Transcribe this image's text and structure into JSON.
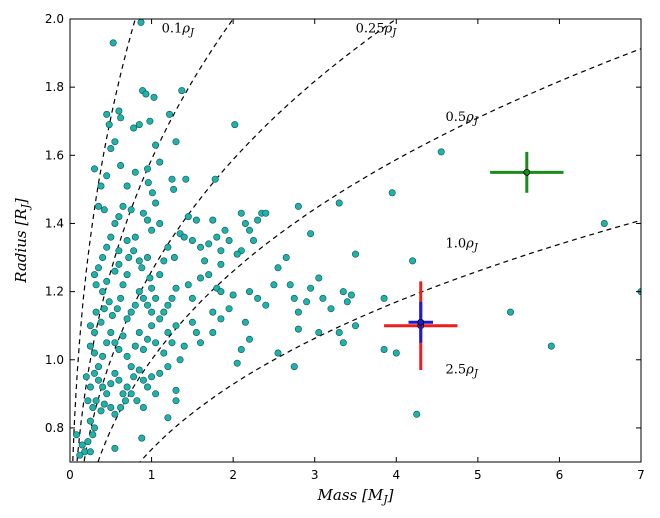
{
  "chart_data": {
    "type": "scatter",
    "xlabel": "Mass [M_J]",
    "ylabel": "Radius [R_J]",
    "xlim": [
      0,
      7
    ],
    "ylim": [
      0.7,
      2.0
    ],
    "xticks": [
      "0",
      "1",
      "2",
      "3",
      "4",
      "5",
      "6",
      "7"
    ],
    "yticks": [
      "0.8",
      "1.0",
      "1.2",
      "1.4",
      "1.6",
      "1.8",
      "2.0"
    ],
    "grid": false,
    "colors": {
      "points": "#20b2aa",
      "point_edge": "#0a5550",
      "curves": "#000000",
      "red_planet": "#ee1c1c",
      "blue_planet": "#1b1bcf",
      "green_planet": "#1a8c1a"
    },
    "density_curves": [
      {
        "label": "0.1ρ_J",
        "density": 0.1
      },
      {
        "label": "0.25ρ_J",
        "density": 0.25
      },
      {
        "label": "0.5ρ_J",
        "density": 0.5
      },
      {
        "label": "1.0ρ_J",
        "density": 1.0
      },
      {
        "label": "2.5ρ_J",
        "density": 2.5
      }
    ],
    "highlighted_planets": [
      {
        "color": "green",
        "x": 5.6,
        "y": 1.55,
        "xerr": 0.45,
        "yerr": 0.06
      },
      {
        "color": "red",
        "x": 4.3,
        "y": 1.1,
        "xerr": 0.45,
        "yerr": 0.13
      },
      {
        "color": "blue",
        "x": 4.3,
        "y": 1.11,
        "xerr": 0.15,
        "yerr": 0.06
      }
    ],
    "points": [
      [
        0.53,
        1.93
      ],
      [
        0.87,
        1.99
      ],
      [
        0.45,
        1.72
      ],
      [
        0.48,
        1.69
      ],
      [
        0.62,
        1.71
      ],
      [
        0.6,
        1.73
      ],
      [
        0.78,
        1.68
      ],
      [
        0.85,
        1.69
      ],
      [
        0.89,
        1.79
      ],
      [
        0.93,
        1.78
      ],
      [
        1.03,
        1.77
      ],
      [
        1.37,
        1.79
      ],
      [
        0.98,
        1.7
      ],
      [
        1.22,
        1.72
      ],
      [
        1.05,
        1.63
      ],
      [
        1.3,
        1.64
      ],
      [
        0.55,
        1.64
      ],
      [
        0.62,
        1.57
      ],
      [
        0.5,
        1.62
      ],
      [
        0.3,
        1.56
      ],
      [
        0.38,
        1.51
      ],
      [
        0.45,
        1.54
      ],
      [
        0.7,
        1.51
      ],
      [
        0.8,
        1.55
      ],
      [
        0.95,
        1.56
      ],
      [
        0.96,
        1.52
      ],
      [
        1.01,
        1.49
      ],
      [
        1.1,
        1.58
      ],
      [
        1.25,
        1.53
      ],
      [
        1.27,
        1.5
      ],
      [
        1.42,
        1.53
      ],
      [
        1.78,
        1.53
      ],
      [
        2.02,
        1.69
      ],
      [
        0.35,
        1.45
      ],
      [
        0.42,
        1.44
      ],
      [
        0.55,
        1.4
      ],
      [
        0.6,
        1.42
      ],
      [
        0.65,
        1.45
      ],
      [
        0.75,
        1.44
      ],
      [
        0.9,
        1.43
      ],
      [
        0.95,
        1.41
      ],
      [
        1.05,
        1.46
      ],
      [
        1.0,
        1.38
      ],
      [
        0.8,
        1.36
      ],
      [
        0.7,
        1.35
      ],
      [
        0.6,
        1.32
      ],
      [
        0.5,
        1.36
      ],
      [
        0.45,
        1.33
      ],
      [
        0.4,
        1.3
      ],
      [
        0.35,
        1.27
      ],
      [
        0.3,
        1.25
      ],
      [
        0.32,
        1.22
      ],
      [
        0.4,
        1.2
      ],
      [
        0.45,
        1.23
      ],
      [
        0.55,
        1.26
      ],
      [
        0.6,
        1.28
      ],
      [
        0.65,
        1.22
      ],
      [
        0.7,
        1.25
      ],
      [
        0.72,
        1.3
      ],
      [
        0.78,
        1.32
      ],
      [
        0.85,
        1.29
      ],
      [
        0.88,
        1.27
      ],
      [
        0.95,
        1.3
      ],
      [
        0.98,
        1.24
      ],
      [
        1.0,
        1.21
      ],
      [
        1.05,
        1.18
      ],
      [
        1.1,
        1.25
      ],
      [
        1.15,
        1.29
      ],
      [
        1.2,
        1.33
      ],
      [
        1.28,
        1.3
      ],
      [
        1.35,
        1.37
      ],
      [
        1.4,
        1.36
      ],
      [
        1.5,
        1.35
      ],
      [
        1.6,
        1.33
      ],
      [
        1.7,
        1.34
      ],
      [
        1.75,
        1.41
      ],
      [
        1.8,
        1.36
      ],
      [
        1.9,
        1.38
      ],
      [
        1.95,
        1.35
      ],
      [
        2.1,
        1.43
      ],
      [
        2.15,
        1.4
      ],
      [
        2.2,
        1.38
      ],
      [
        2.25,
        1.35
      ],
      [
        2.3,
        1.41
      ],
      [
        2.35,
        1.43
      ],
      [
        2.4,
        1.43
      ],
      [
        2.1,
        1.32
      ],
      [
        2.05,
        1.31
      ],
      [
        1.85,
        1.32
      ],
      [
        1.65,
        1.29
      ],
      [
        1.6,
        1.24
      ],
      [
        1.7,
        1.25
      ],
      [
        1.8,
        1.21
      ],
      [
        1.85,
        1.2
      ],
      [
        1.5,
        1.18
      ],
      [
        1.45,
        1.22
      ],
      [
        1.3,
        1.21
      ],
      [
        1.25,
        1.18
      ],
      [
        1.2,
        1.16
      ],
      [
        1.15,
        1.14
      ],
      [
        1.1,
        1.12
      ],
      [
        1.0,
        1.14
      ],
      [
        0.95,
        1.16
      ],
      [
        0.9,
        1.18
      ],
      [
        0.85,
        1.2
      ],
      [
        0.8,
        1.16
      ],
      [
        0.75,
        1.14
      ],
      [
        0.7,
        1.12
      ],
      [
        0.62,
        1.18
      ],
      [
        0.58,
        1.15
      ],
      [
        0.52,
        1.13
      ],
      [
        0.48,
        1.17
      ],
      [
        0.42,
        1.15
      ],
      [
        0.38,
        1.11
      ],
      [
        0.32,
        1.14
      ],
      [
        0.3,
        1.08
      ],
      [
        0.25,
        1.1
      ],
      [
        0.25,
        1.04
      ],
      [
        0.3,
        1.02
      ],
      [
        0.35,
        0.98
      ],
      [
        0.4,
        1.01
      ],
      [
        0.45,
        1.05
      ],
      [
        0.5,
        1.08
      ],
      [
        0.55,
        1.05
      ],
      [
        0.6,
        1.03
      ],
      [
        0.65,
        1.07
      ],
      [
        0.7,
        1.01
      ],
      [
        0.75,
        0.98
      ],
      [
        0.8,
        1.04
      ],
      [
        0.85,
        1.08
      ],
      [
        0.9,
        1.03
      ],
      [
        0.95,
        1.06
      ],
      [
        1.0,
        1.1
      ],
      [
        1.05,
        1.05
      ],
      [
        1.15,
        1.02
      ],
      [
        1.2,
        1.08
      ],
      [
        1.25,
        1.05
      ],
      [
        1.3,
        1.1
      ],
      [
        1.4,
        1.04
      ],
      [
        1.5,
        1.11
      ],
      [
        1.55,
        1.08
      ],
      [
        1.6,
        1.05
      ],
      [
        1.35,
        1.0
      ],
      [
        1.2,
        0.98
      ],
      [
        1.1,
        0.96
      ],
      [
        1.0,
        0.95
      ],
      [
        0.95,
        0.92
      ],
      [
        0.9,
        0.94
      ],
      [
        0.85,
        0.97
      ],
      [
        0.78,
        0.95
      ],
      [
        0.7,
        0.92
      ],
      [
        0.65,
        0.9
      ],
      [
        0.6,
        0.94
      ],
      [
        0.55,
        0.96
      ],
      [
        0.5,
        0.93
      ],
      [
        0.45,
        0.9
      ],
      [
        0.4,
        0.92
      ],
      [
        0.35,
        0.94
      ],
      [
        0.3,
        0.96
      ],
      [
        0.25,
        0.92
      ],
      [
        0.2,
        0.95
      ],
      [
        0.22,
        0.88
      ],
      [
        0.28,
        0.86
      ],
      [
        0.32,
        0.88
      ],
      [
        0.38,
        0.85
      ],
      [
        0.42,
        0.87
      ],
      [
        0.5,
        0.86
      ],
      [
        0.55,
        0.84
      ],
      [
        0.62,
        0.86
      ],
      [
        0.68,
        0.88
      ],
      [
        0.75,
        0.9
      ],
      [
        0.82,
        0.88
      ],
      [
        0.9,
        0.86
      ],
      [
        1.05,
        0.9
      ],
      [
        0.25,
        0.82
      ],
      [
        0.28,
        0.78
      ],
      [
        0.3,
        0.8
      ],
      [
        0.22,
        0.76
      ],
      [
        0.18,
        0.73
      ],
      [
        0.15,
        0.75
      ],
      [
        0.25,
        0.73
      ],
      [
        0.08,
        0.78
      ],
      [
        0.12,
        0.72
      ],
      [
        0.55,
        0.74
      ],
      [
        0.88,
        0.77
      ],
      [
        1.3,
        0.88
      ],
      [
        1.75,
        1.08
      ],
      [
        1.85,
        1.12
      ],
      [
        1.95,
        1.15
      ],
      [
        2.15,
        1.11
      ],
      [
        2.2,
        1.06
      ],
      [
        2.1,
        1.03
      ],
      [
        2.05,
        0.99
      ],
      [
        2.2,
        1.2
      ],
      [
        2.3,
        1.18
      ],
      [
        2.4,
        1.16
      ],
      [
        2.5,
        1.22
      ],
      [
        2.55,
        1.27
      ],
      [
        2.65,
        1.3
      ],
      [
        2.7,
        1.22
      ],
      [
        2.75,
        1.18
      ],
      [
        2.8,
        1.14
      ],
      [
        2.9,
        1.17
      ],
      [
        2.95,
        1.21
      ],
      [
        3.05,
        1.24
      ],
      [
        3.1,
        1.18
      ],
      [
        3.2,
        1.15
      ],
      [
        3.35,
        1.2
      ],
      [
        3.4,
        1.17
      ],
      [
        3.45,
        1.19
      ],
      [
        2.8,
        1.45
      ],
      [
        2.95,
        1.37
      ],
      [
        3.3,
        1.46
      ],
      [
        3.5,
        1.31
      ],
      [
        3.95,
        1.49
      ],
      [
        4.55,
        1.61
      ],
      [
        3.85,
        1.18
      ],
      [
        4.2,
        1.29
      ],
      [
        3.3,
        1.08
      ],
      [
        3.35,
        1.05
      ],
      [
        3.5,
        1.1
      ],
      [
        2.8,
        1.09
      ],
      [
        2.55,
        1.02
      ],
      [
        2.75,
        0.98
      ],
      [
        3.05,
        1.08
      ],
      [
        3.85,
        1.03
      ],
      [
        4.0,
        1.02
      ],
      [
        5.4,
        1.14
      ],
      [
        5.9,
        1.04
      ],
      [
        6.55,
        1.4
      ],
      [
        7.0,
        1.2
      ],
      [
        4.25,
        0.84
      ],
      [
        1.3,
        0.91
      ],
      [
        1.2,
        0.83
      ],
      [
        1.75,
        1.14
      ],
      [
        2.0,
        1.19
      ],
      [
        1.1,
        1.4
      ],
      [
        1.45,
        1.42
      ],
      [
        1.55,
        1.41
      ],
      [
        1.85,
        1.28
      ]
    ]
  }
}
